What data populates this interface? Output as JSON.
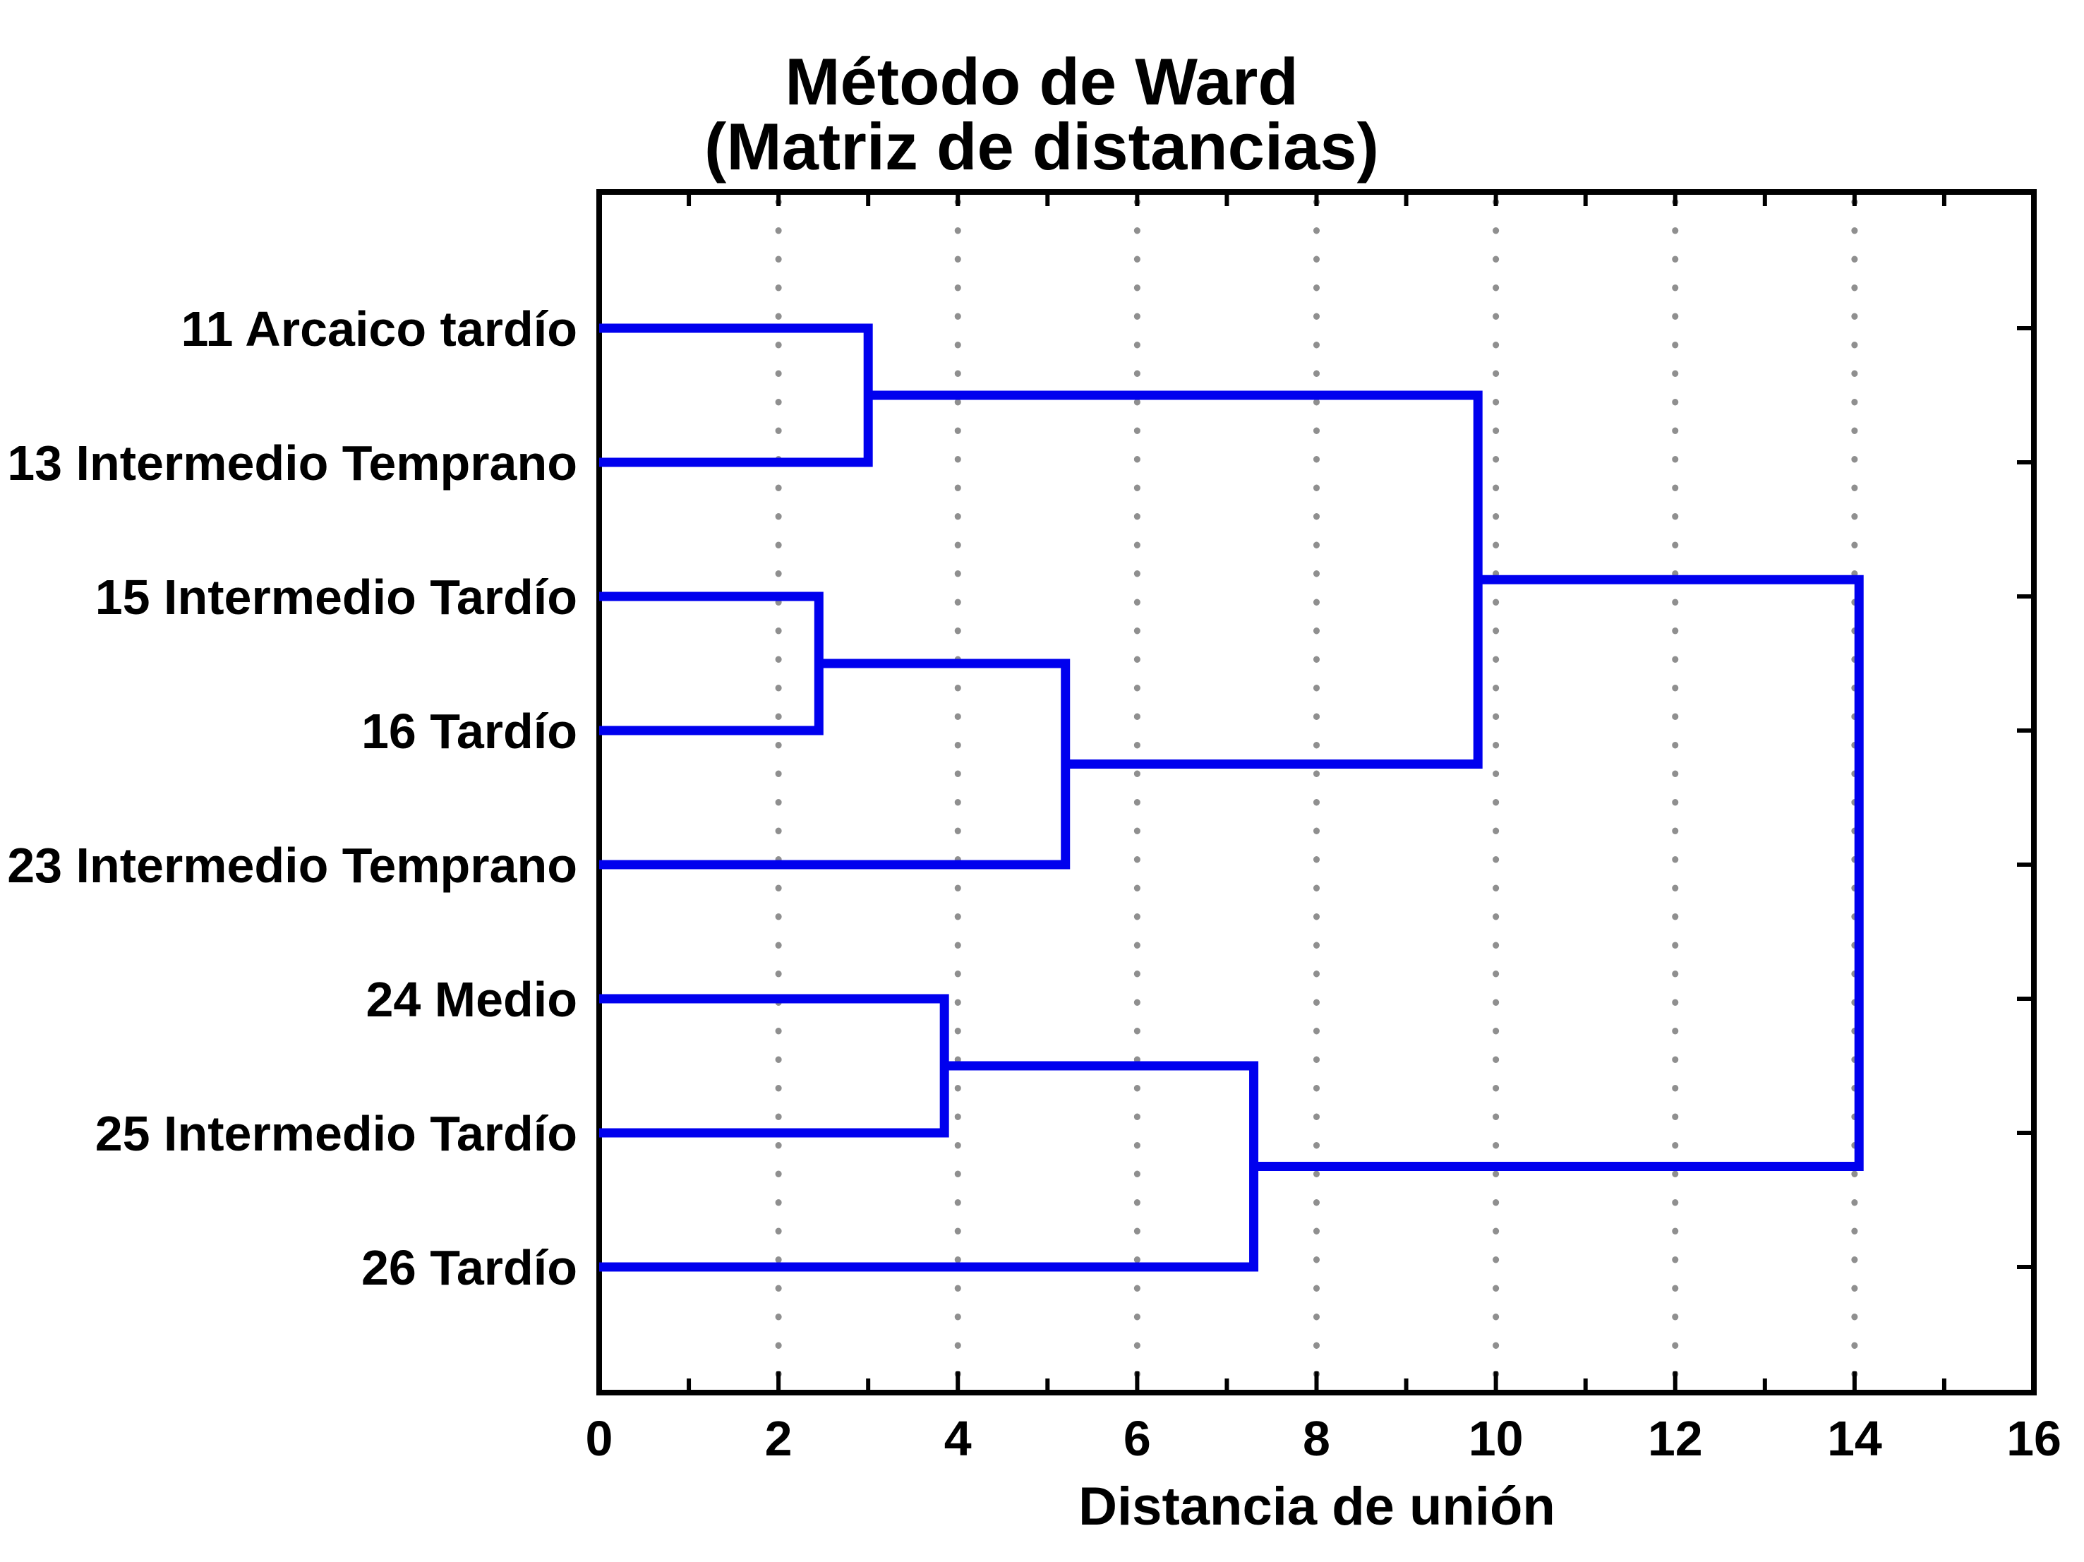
{
  "chart_data": {
    "type": "dendrogram",
    "orientation": "left-to-right",
    "title_lines": [
      "Método de Ward",
      "(Matriz de distancias)"
    ],
    "xlabel": "Distancia de unión",
    "xlim": [
      0,
      16
    ],
    "x_major_ticks": [
      0,
      2,
      4,
      6,
      8,
      10,
      12,
      14,
      16
    ],
    "x_minor_tick_step": 1,
    "grid": {
      "vertical_dotted_at": [
        2,
        4,
        6,
        8,
        10,
        12,
        14
      ],
      "color": "#8f8f8f"
    },
    "leaves": [
      "11 Arcaico tardío",
      "13 Intermedio Temprano",
      "15 Intermedio Tardío",
      "16 Tardío",
      "23 Intermedio Temprano",
      "24 Medio",
      "25 Intermedio Tardío",
      "26 Tardío"
    ],
    "merges": [
      {
        "id": "M0",
        "children": [
          "L0",
          "L1"
        ],
        "distance": 3.0
      },
      {
        "id": "M1",
        "children": [
          "L2",
          "L3"
        ],
        "distance": 2.45
      },
      {
        "id": "M2",
        "children": [
          "M1",
          "L4"
        ],
        "distance": 5.2
      },
      {
        "id": "M3",
        "children": [
          "M0",
          "M2"
        ],
        "distance": 9.8
      },
      {
        "id": "M4",
        "children": [
          "L5",
          "L6"
        ],
        "distance": 3.85
      },
      {
        "id": "M5",
        "children": [
          "M4",
          "L7"
        ],
        "distance": 7.3
      },
      {
        "id": "M6",
        "children": [
          "M3",
          "M5"
        ],
        "distance": 14.05
      }
    ],
    "line_color": "#0000ee",
    "frame_color": "#000000",
    "text_color": "#000000",
    "background": "#ffffff"
  }
}
